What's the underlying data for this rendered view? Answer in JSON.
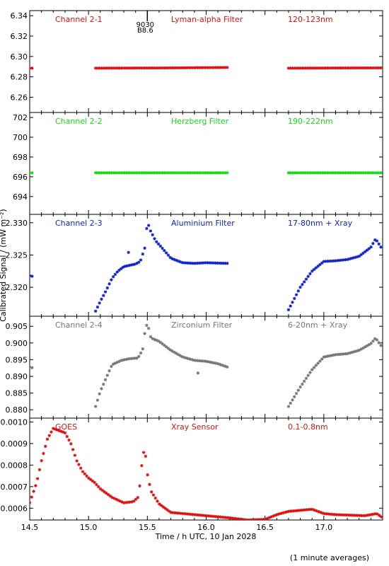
{
  "figure": {
    "xlabel": "Time / h UTC, 10 Jan 2028",
    "ylabel": "Calibrated Signal / (mW m⁻²)",
    "footnote": "(1 minute averages)",
    "marker_top": "9030",
    "marker_bottom": "B8.6",
    "marker_x": 15.5
  },
  "chart_data": [
    {
      "type": "scatter",
      "channel": "Channel 2-1",
      "filter": "Lyman-alpha Filter",
      "band": "120-123nm",
      "color": "#dd1111",
      "xlim": [
        14.5,
        17.5
      ],
      "ylim": [
        6.245,
        6.345
      ],
      "yticks": [
        6.26,
        6.28,
        6.3,
        6.32,
        6.34
      ],
      "ytick_labels": [
        "6.26",
        "6.28",
        "6.30",
        "6.32",
        "6.34"
      ],
      "segments": [
        {
          "x0": 14.5,
          "x1": 14.52,
          "step": 0.02,
          "knots": [
            [
              14.5,
              6.2885
            ],
            [
              14.52,
              6.2885
            ]
          ]
        },
        {
          "x0": 15.06,
          "x1": 16.18,
          "step": 0.0167,
          "knots": [
            [
              15.06,
              6.2885
            ],
            [
              15.6,
              6.2887
            ],
            [
              16.18,
              6.2892
            ]
          ]
        },
        {
          "x0": 16.7,
          "x1": 17.5,
          "step": 0.0167,
          "knots": [
            [
              16.7,
              6.2885
            ],
            [
              17.5,
              6.2888
            ]
          ]
        }
      ]
    },
    {
      "type": "scatter",
      "channel": "Channel 2-2",
      "filter": "Herzberg Filter",
      "band": "190-222nm",
      "color": "#11dd11",
      "xlim": [
        14.5,
        17.5
      ],
      "ylim": [
        692.2,
        702.5
      ],
      "yticks": [
        694,
        696,
        698,
        700,
        702
      ],
      "ytick_labels": [
        "694",
        "696",
        "698",
        "700",
        "702"
      ],
      "segments": [
        {
          "x0": 14.5,
          "x1": 14.52,
          "step": 0.02,
          "knots": [
            [
              14.5,
              696.4
            ],
            [
              14.52,
              696.4
            ]
          ]
        },
        {
          "x0": 15.06,
          "x1": 16.18,
          "step": 0.0167,
          "knots": [
            [
              15.06,
              696.4
            ],
            [
              16.18,
              696.4
            ]
          ]
        },
        {
          "x0": 16.7,
          "x1": 17.5,
          "step": 0.0167,
          "knots": [
            [
              16.7,
              696.4
            ],
            [
              17.5,
              696.4
            ]
          ]
        }
      ]
    },
    {
      "type": "scatter",
      "channel": "Channel 2-3",
      "filter": "Aluminium Filter",
      "band": "17-80nm + Xray",
      "color": "#1122cc",
      "xlim": [
        14.5,
        17.5
      ],
      "ylim": [
        2.3155,
        2.3313
      ],
      "yticks": [
        2.32,
        2.325,
        2.33
      ],
      "ytick_labels": [
        "2.320",
        "2.325",
        "2.330"
      ],
      "segments": [
        {
          "x0": 14.5,
          "x1": 14.52,
          "step": 0.02,
          "knots": [
            [
              14.5,
              2.3218
            ],
            [
              14.52,
              2.3217
            ]
          ]
        },
        {
          "x0": 15.06,
          "x1": 16.18,
          "step": 0.0167,
          "knots": [
            [
              15.06,
              2.3163
            ],
            [
              15.1,
              2.3178
            ],
            [
              15.15,
              2.3195
            ],
            [
              15.2,
              2.3214
            ],
            [
              15.25,
              2.3225
            ],
            [
              15.3,
              2.3232
            ],
            [
              15.4,
              2.3236
            ],
            [
              15.44,
              2.324
            ],
            [
              15.48,
              2.3262
            ],
            [
              15.5,
              2.3303
            ],
            [
              15.52,
              2.329
            ],
            [
              15.57,
              2.3272
            ],
            [
              15.62,
              2.3262
            ],
            [
              15.7,
              2.3245
            ],
            [
              15.8,
              2.3238
            ],
            [
              15.9,
              2.3237
            ],
            [
              16.0,
              2.3238
            ],
            [
              16.18,
              2.3237
            ]
          ]
        },
        {
          "x0": 16.7,
          "x1": 17.5,
          "step": 0.0167,
          "knots": [
            [
              16.7,
              2.3165
            ],
            [
              16.8,
              2.32
            ],
            [
              16.9,
              2.3225
            ],
            [
              17.0,
              2.324
            ],
            [
              17.1,
              2.3241
            ],
            [
              17.2,
              2.3243
            ],
            [
              17.3,
              2.3248
            ],
            [
              17.4,
              2.3262
            ],
            [
              17.44,
              2.3275
            ],
            [
              17.5,
              2.3258
            ]
          ]
        }
      ],
      "outliers": [
        [
          15.34,
          2.3254
        ]
      ]
    },
    {
      "type": "scatter",
      "channel": "Channel 2-4",
      "filter": "Zirconium Filter",
      "band": "6-20nm + Xray",
      "color": "#777777",
      "xlim": [
        14.5,
        17.5
      ],
      "ylim": [
        0.8775,
        0.908
      ],
      "yticks": [
        0.88,
        0.885,
        0.89,
        0.895,
        0.9,
        0.905
      ],
      "ytick_labels": [
        "0.880",
        "0.885",
        "0.890",
        "0.895",
        "0.900",
        "0.905"
      ],
      "segments": [
        {
          "x0": 14.5,
          "x1": 14.52,
          "step": 0.02,
          "knots": [
            [
              14.5,
              0.8928
            ],
            [
              14.52,
              0.8926
            ]
          ]
        },
        {
          "x0": 15.06,
          "x1": 16.18,
          "step": 0.0167,
          "knots": [
            [
              15.06,
              0.881
            ],
            [
              15.1,
              0.8855
            ],
            [
              15.15,
              0.8895
            ],
            [
              15.2,
              0.8935
            ],
            [
              15.28,
              0.8948
            ],
            [
              15.35,
              0.8953
            ],
            [
              15.42,
              0.8955
            ],
            [
              15.46,
              0.898
            ],
            [
              15.48,
              0.9035
            ],
            [
              15.5,
              0.906
            ],
            [
              15.53,
              0.9015
            ],
            [
              15.6,
              0.9005
            ],
            [
              15.7,
              0.8978
            ],
            [
              15.8,
              0.8958
            ],
            [
              15.9,
              0.8948
            ],
            [
              16.0,
              0.8945
            ],
            [
              16.1,
              0.8938
            ],
            [
              16.18,
              0.8928
            ]
          ]
        },
        {
          "x0": 16.7,
          "x1": 17.5,
          "step": 0.0167,
          "knots": [
            [
              16.7,
              0.881
            ],
            [
              16.8,
              0.8868
            ],
            [
              16.9,
              0.892
            ],
            [
              17.0,
              0.8958
            ],
            [
              17.1,
              0.8965
            ],
            [
              17.2,
              0.8968
            ],
            [
              17.3,
              0.8978
            ],
            [
              17.4,
              0.8998
            ],
            [
              17.44,
              0.9015
            ],
            [
              17.5,
              0.8985
            ]
          ]
        }
      ],
      "outliers": [
        [
          15.93,
          0.891
        ]
      ]
    },
    {
      "type": "scatter",
      "channel": "GOES",
      "filter": "Xray Sensor",
      "band": "0.1-0.8nm",
      "color": "#dd1111",
      "xlim": [
        14.5,
        17.5
      ],
      "ylim": [
        0.000545,
        0.001018
      ],
      "yticks": [
        0.0006,
        0.0007,
        0.0008,
        0.0009,
        0.001
      ],
      "ytick_labels": [
        "0.0006",
        "0.0007",
        "0.0008",
        "0.0009",
        "0.0010"
      ],
      "xticks": [
        14.5,
        15.0,
        15.5,
        16.0,
        16.5,
        17.0
      ],
      "xtick_labels": [
        "14.5",
        "15.0",
        "15.5",
        "16.0",
        "16.5",
        "17.0"
      ],
      "segments": [
        {
          "x0": 14.5,
          "x1": 17.5,
          "step": 0.0167,
          "knots": [
            [
              14.5,
              0.000625
            ],
            [
              14.56,
              0.00072
            ],
            [
              14.6,
              0.00082
            ],
            [
              14.65,
              0.00092
            ],
            [
              14.7,
              0.00097
            ],
            [
              14.75,
              0.00096
            ],
            [
              14.8,
              0.00095
            ],
            [
              14.85,
              0.0009
            ],
            [
              14.9,
              0.00082
            ],
            [
              14.95,
              0.00077
            ],
            [
              15.0,
              0.00074
            ],
            [
              15.05,
              0.00072
            ],
            [
              15.1,
              0.00069
            ],
            [
              15.2,
              0.00065
            ],
            [
              15.3,
              0.000625
            ],
            [
              15.38,
              0.00063
            ],
            [
              15.42,
              0.00065
            ],
            [
              15.44,
              0.00072
            ],
            [
              15.46,
              0.00085
            ],
            [
              15.48,
              0.00087
            ],
            [
              15.5,
              0.00076
            ],
            [
              15.53,
              0.00068
            ],
            [
              15.6,
              0.00062
            ],
            [
              15.7,
              0.00058
            ],
            [
              15.8,
              0.000575
            ],
            [
              16.0,
              0.000565
            ],
            [
              16.2,
              0.000555
            ],
            [
              16.35,
              0.000545
            ],
            [
              16.5,
              0.000548
            ],
            [
              16.6,
              0.00057
            ],
            [
              16.7,
              0.000585
            ],
            [
              16.8,
              0.00059
            ],
            [
              16.9,
              0.000595
            ],
            [
              17.0,
              0.000575
            ],
            [
              17.1,
              0.00057
            ],
            [
              17.2,
              0.000568
            ],
            [
              17.35,
              0.000565
            ],
            [
              17.45,
              0.000575
            ],
            [
              17.5,
              0.000555
            ]
          ]
        }
      ]
    }
  ]
}
